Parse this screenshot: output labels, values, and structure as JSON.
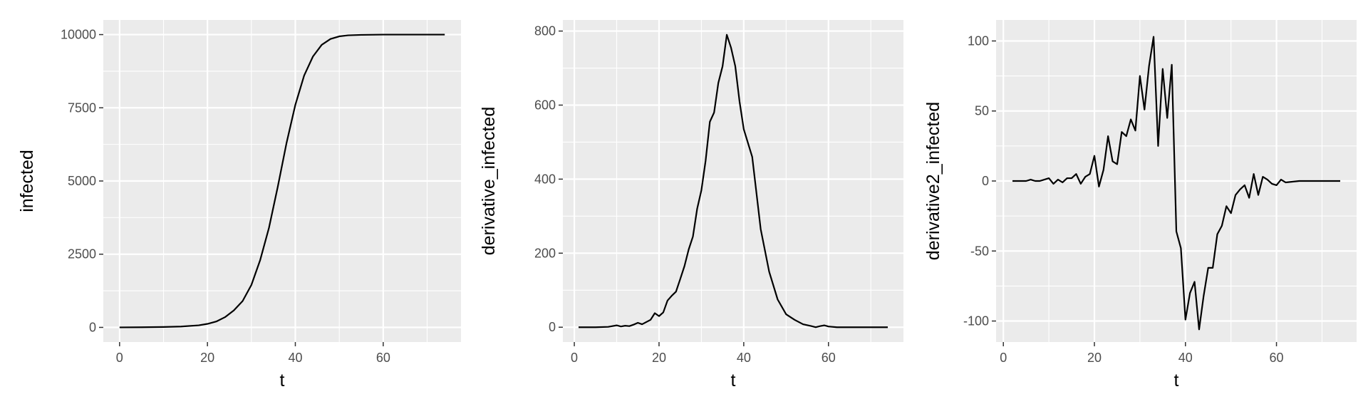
{
  "chart_data": [
    {
      "type": "line",
      "xlabel": "t",
      "ylabel": "infected",
      "xlim": [
        -3.7,
        77.7
      ],
      "ylim": [
        -500,
        10500
      ],
      "x_ticks": [
        0,
        20,
        40,
        60
      ],
      "y_ticks": [
        0,
        2500,
        5000,
        7500,
        10000
      ],
      "x_tick_labels": [
        "0",
        "20",
        "40",
        "60"
      ],
      "y_tick_labels": [
        "0",
        "2500",
        "5000",
        "7500",
        "10000"
      ],
      "grid": true,
      "series": [
        {
          "x": [
            0,
            5,
            10,
            14,
            18,
            20,
            22,
            24,
            26,
            28,
            30,
            32,
            34,
            36,
            38,
            40,
            42,
            44,
            46,
            48,
            50,
            52,
            55,
            60,
            65,
            74
          ],
          "y": [
            0,
            5,
            15,
            30,
            70,
            120,
            200,
            350,
            580,
            900,
            1450,
            2300,
            3400,
            4800,
            6300,
            7600,
            8600,
            9250,
            9650,
            9850,
            9940,
            9975,
            9990,
            10000,
            10000,
            10000
          ]
        }
      ]
    },
    {
      "type": "line",
      "xlabel": "t",
      "ylabel": "derivative_infected",
      "xlim": [
        -2.7,
        77.7
      ],
      "ylim": [
        -40,
        830
      ],
      "x_ticks": [
        0,
        20,
        40,
        60
      ],
      "y_ticks": [
        0,
        200,
        400,
        600,
        800
      ],
      "x_tick_labels": [
        "0",
        "20",
        "40",
        "60"
      ],
      "y_tick_labels": [
        "0",
        "200",
        "400",
        "600",
        "800"
      ],
      "grid": true,
      "series": [
        {
          "x": [
            1,
            5,
            8,
            10,
            11,
            12,
            13,
            14,
            15,
            16,
            17,
            18,
            19,
            20,
            21,
            22,
            23,
            24,
            25,
            26,
            27,
            28,
            29,
            30,
            31,
            32,
            33,
            34,
            35,
            36,
            37,
            38,
            39,
            40,
            42,
            44,
            46,
            48,
            50,
            52,
            54,
            56,
            57,
            58,
            59,
            60,
            62,
            65,
            70,
            74
          ],
          "y": [
            0,
            0,
            1,
            5,
            2,
            4,
            3,
            7,
            12,
            8,
            14,
            20,
            38,
            30,
            40,
            72,
            85,
            96,
            130,
            165,
            210,
            245,
            320,
            370,
            450,
            555,
            580,
            660,
            705,
            790,
            755,
            705,
            610,
            535,
            460,
            265,
            150,
            75,
            35,
            20,
            8,
            3,
            0,
            3,
            5,
            2,
            0,
            0,
            0,
            0
          ]
        }
      ]
    },
    {
      "type": "line",
      "xlabel": "t",
      "ylabel": "derivative2_infected",
      "xlim": [
        -1.6,
        77.6
      ],
      "ylim": [
        -115,
        115
      ],
      "x_ticks": [
        0,
        20,
        40,
        60
      ],
      "y_ticks": [
        -100,
        -50,
        0,
        50,
        100
      ],
      "x_tick_labels": [
        "0",
        "20",
        "40",
        "60"
      ],
      "y_tick_labels": [
        "-100",
        "-50",
        "0",
        "50",
        "100"
      ],
      "grid": true,
      "series": [
        {
          "x": [
            2,
            5,
            6,
            7,
            8,
            9,
            10,
            11,
            12,
            13,
            14,
            15,
            16,
            17,
            18,
            19,
            20,
            21,
            22,
            23,
            24,
            25,
            26,
            27,
            28,
            29,
            30,
            31,
            32,
            33,
            34,
            35,
            36,
            37,
            38,
            39,
            40,
            41,
            42,
            43,
            44,
            45,
            46,
            47,
            48,
            49,
            50,
            51,
            52,
            53,
            54,
            55,
            56,
            57,
            58,
            59,
            60,
            61,
            62,
            65,
            70,
            74
          ],
          "y": [
            0,
            0,
            1,
            0,
            0,
            1,
            2,
            -2,
            1,
            -1,
            2,
            2,
            5,
            -2,
            3,
            5,
            18,
            -4,
            8,
            32,
            14,
            12,
            35,
            32,
            44,
            36,
            75,
            51,
            82,
            103,
            25,
            80,
            45,
            83,
            -36,
            -48,
            -99,
            -80,
            -72,
            -106,
            -82,
            -62,
            -62,
            -38,
            -32,
            -18,
            -23,
            -10,
            -6,
            -3,
            -12,
            5,
            -10,
            3,
            1,
            -2,
            -3,
            1,
            -1,
            0,
            0,
            0
          ]
        }
      ]
    }
  ]
}
